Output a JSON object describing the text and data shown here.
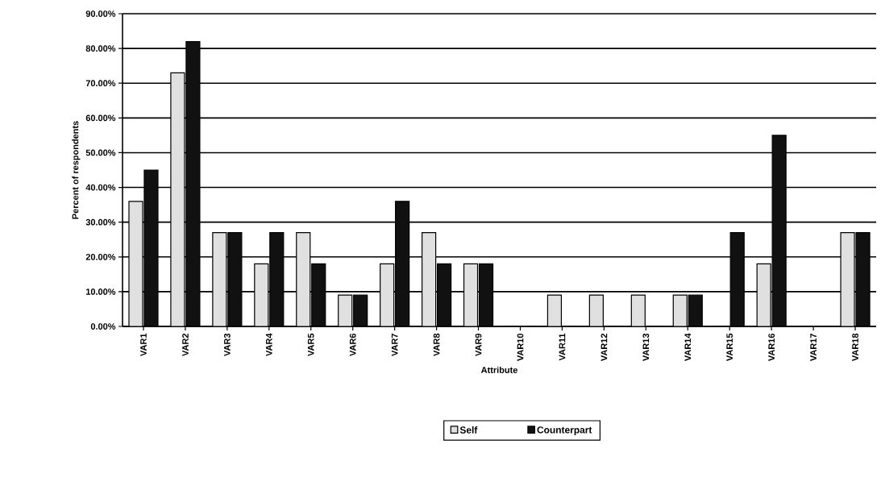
{
  "chart_data": {
    "type": "bar",
    "categories": [
      "VAR1",
      "VAR2",
      "VAR3",
      "VAR4",
      "VAR5",
      "VAR6",
      "VAR7",
      "VAR8",
      "VAR9",
      "VAR10",
      "VAR11",
      "VAR12",
      "VAR13",
      "VAR14",
      "VAR15",
      "VAR16",
      "VAR17",
      "VAR18"
    ],
    "series": [
      {
        "name": "Self",
        "color": "#e0e0e0",
        "values": [
          36,
          73,
          27,
          18,
          27,
          9,
          18,
          27,
          18,
          0,
          9,
          9,
          9,
          9,
          0,
          18,
          0,
          27
        ]
      },
      {
        "name": "Counterpart",
        "color": "#111111",
        "values": [
          45,
          82,
          27,
          27,
          18,
          9,
          36,
          18,
          18,
          0,
          0,
          0,
          0,
          9,
          27,
          55,
          0,
          27
        ]
      }
    ],
    "xlabel": "Attribute",
    "ylabel": "Percent of respondents",
    "ylim": [
      0,
      90
    ],
    "yticks": [
      {
        "value": 0,
        "label": "0.00%"
      },
      {
        "value": 10,
        "label": "10.00%"
      },
      {
        "value": 20,
        "label": "20.00%"
      },
      {
        "value": 30,
        "label": "30.00%"
      },
      {
        "value": 40,
        "label": "40.00%"
      },
      {
        "value": 50,
        "label": "50.00%"
      },
      {
        "value": 60,
        "label": "60.00%"
      },
      {
        "value": 70,
        "label": "70.00%"
      },
      {
        "value": 80,
        "label": "80.00%"
      },
      {
        "value": 90,
        "label": "90.00%"
      }
    ],
    "grid": "y",
    "legend": "bottom"
  }
}
